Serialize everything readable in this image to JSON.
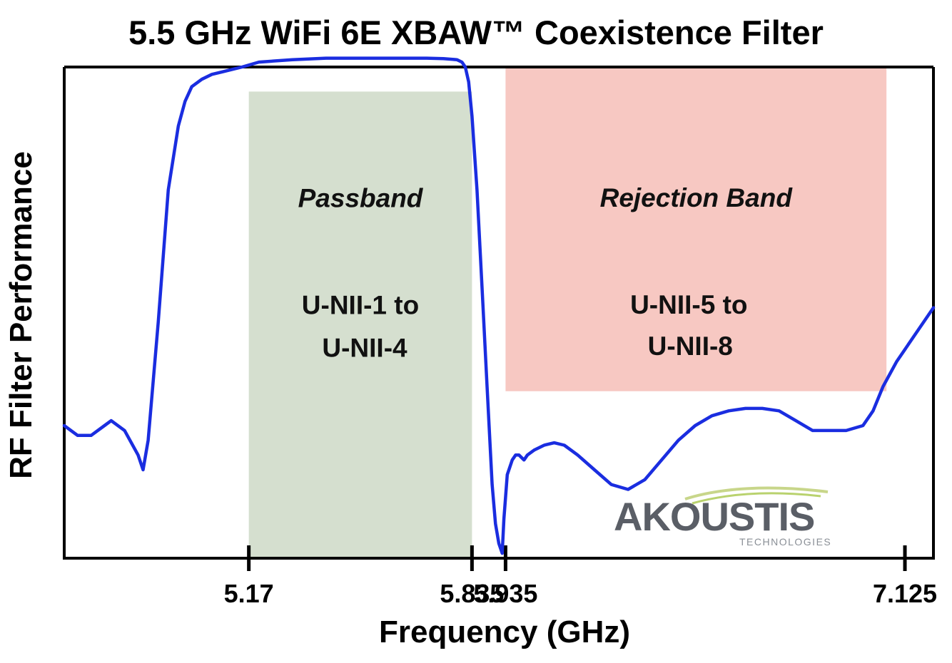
{
  "chart_data": {
    "type": "line",
    "title": "5.5 GHz WiFi 6E XBAW™ Coexistence Filter",
    "xlabel": "Frequency (GHz)",
    "ylabel": "RF Filter Performance",
    "x_ticks": [
      "5.17",
      "5.835",
      "5.935",
      "7.125"
    ],
    "x_tick_values": [
      5.17,
      5.835,
      5.935,
      7.125
    ],
    "xlim": [
      4.62,
      7.21
    ],
    "ylim": [
      0,
      100
    ],
    "grid": false,
    "bands": [
      {
        "name": "Passband",
        "range": "U-NII-1 to U-NII-4",
        "line1": "U-NII-1 to",
        "line2": "U-NII-4",
        "x": [
          5.17,
          5.835
        ],
        "y": [
          0,
          95
        ],
        "color": "#d5dfcf"
      },
      {
        "name": "Rejection Band",
        "range": "U-NII-5 to U-NII-8",
        "line1": "U-NII-5 to",
        "line2": "U-NII-8",
        "x": [
          5.935,
          7.07
        ],
        "y": [
          34,
          100
        ],
        "color": "#f7c8c2"
      }
    ],
    "series": [
      {
        "color": "#1a2de0",
        "x": [
          4.62,
          4.66,
          4.7,
          4.74,
          4.76,
          4.8,
          4.84,
          4.855,
          4.87,
          4.9,
          4.93,
          4.96,
          4.98,
          5.0,
          5.03,
          5.06,
          5.09,
          5.12,
          5.15,
          5.2,
          5.3,
          5.4,
          5.5,
          5.6,
          5.7,
          5.75,
          5.79,
          5.805,
          5.815,
          5.825,
          5.835,
          5.85,
          5.865,
          5.88,
          5.895,
          5.905,
          5.915,
          5.92,
          5.925,
          5.93,
          5.94,
          5.955,
          5.965,
          5.97,
          5.975,
          5.99,
          6.0,
          6.02,
          6.05,
          6.08,
          6.11,
          6.15,
          6.2,
          6.25,
          6.3,
          6.35,
          6.4,
          6.45,
          6.5,
          6.55,
          6.6,
          6.65,
          6.7,
          6.75,
          6.8,
          6.85,
          6.9,
          6.95,
          7.0,
          7.03,
          7.06,
          7.1,
          7.15,
          7.21
        ],
        "y": [
          27,
          25,
          25,
          27,
          28,
          26,
          21,
          18,
          24,
          48,
          75,
          88,
          93,
          96,
          97.5,
          98.5,
          99,
          99.5,
          100,
          101,
          101.5,
          101.8,
          101.8,
          101.8,
          101.8,
          101.7,
          101.5,
          101,
          100,
          97,
          90,
          75,
          55,
          35,
          15,
          7,
          3,
          2,
          1,
          8,
          17,
          20,
          21,
          21,
          21,
          20,
          21,
          22,
          23,
          23.5,
          23,
          21,
          18,
          15,
          14,
          16,
          20,
          24,
          27,
          29,
          30,
          30.5,
          30.5,
          30,
          28,
          26,
          26,
          26,
          27,
          30,
          35,
          40,
          45,
          51
        ]
      }
    ]
  },
  "logo": {
    "name": "AKOUSTIS",
    "tagline": "TECHNOLOGIES"
  }
}
